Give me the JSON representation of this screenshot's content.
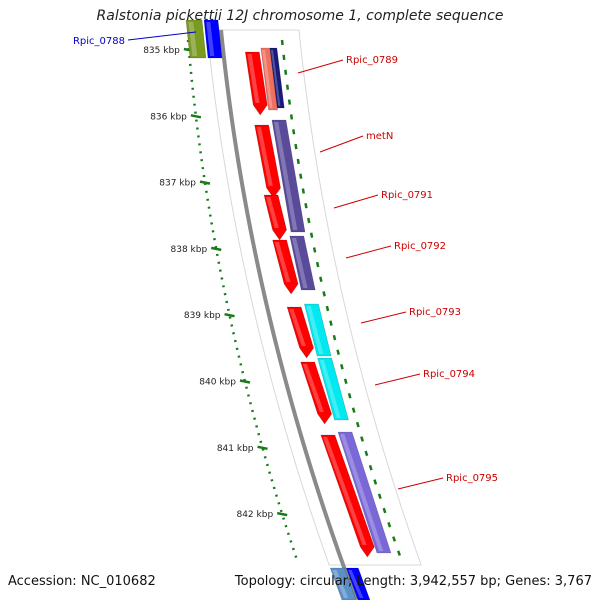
{
  "title": "Ralstonia pickettii 12J chromosome 1, complete sequence",
  "footer": {
    "accession": "Accession: NC_010682",
    "summary": "Topology: circular; Length: 3,942,557 bp; Genes: 3,767"
  },
  "colors": {
    "forward_red": "#ff0000",
    "salmon": "#f07060",
    "navy": "#1a1a7a",
    "slate_purple": "#5a4a9a",
    "cyan": "#00e8f0",
    "lavender": "#7a68d8",
    "olive": "#7a9a20",
    "blue": "#0000ff",
    "tick_green": "#1a7a1a",
    "backbone": "#8a8a8a",
    "label_red": "#cc0000",
    "label_blue": "#0000cc"
  },
  "scale": {
    "ticks": [
      {
        "kbp": 835,
        "label": "835 kbp"
      },
      {
        "kbp": 836,
        "label": "836 kbp"
      },
      {
        "kbp": 837,
        "label": "837 kbp"
      },
      {
        "kbp": 838,
        "label": "838 kbp"
      },
      {
        "kbp": 839,
        "label": "839 kbp"
      },
      {
        "kbp": 840,
        "label": "840 kbp"
      },
      {
        "kbp": 841,
        "label": "841 kbp"
      },
      {
        "kbp": 842,
        "label": "842 kbp"
      }
    ]
  },
  "genes": [
    {
      "name": "Rpic_0788",
      "start_kbp": 834.6,
      "end_kbp": 834.85,
      "color_key": "label_blue"
    },
    {
      "name": "Rpic_0789",
      "start_kbp": 835.05,
      "end_kbp": 835.85,
      "color_key": "label_red"
    },
    {
      "name": "metN",
      "start_kbp": 836.05,
      "end_kbp": 837.2,
      "color_key": "label_red"
    },
    {
      "name": "Rpic_0791",
      "start_kbp": 837.2,
      "end_kbp": 837.85,
      "color_key": "label_red"
    },
    {
      "name": "Rpic_0792",
      "start_kbp": 837.9,
      "end_kbp": 838.7,
      "color_key": "label_red"
    },
    {
      "name": "Rpic_0793",
      "start_kbp": 838.9,
      "end_kbp": 839.65,
      "color_key": "label_red"
    },
    {
      "name": "Rpic_0794",
      "start_kbp": 839.7,
      "end_kbp": 840.65,
      "color_key": "label_red"
    },
    {
      "name": "Rpic_0795",
      "start_kbp": 840.8,
      "end_kbp": 842.6,
      "color_key": "label_red"
    }
  ]
}
